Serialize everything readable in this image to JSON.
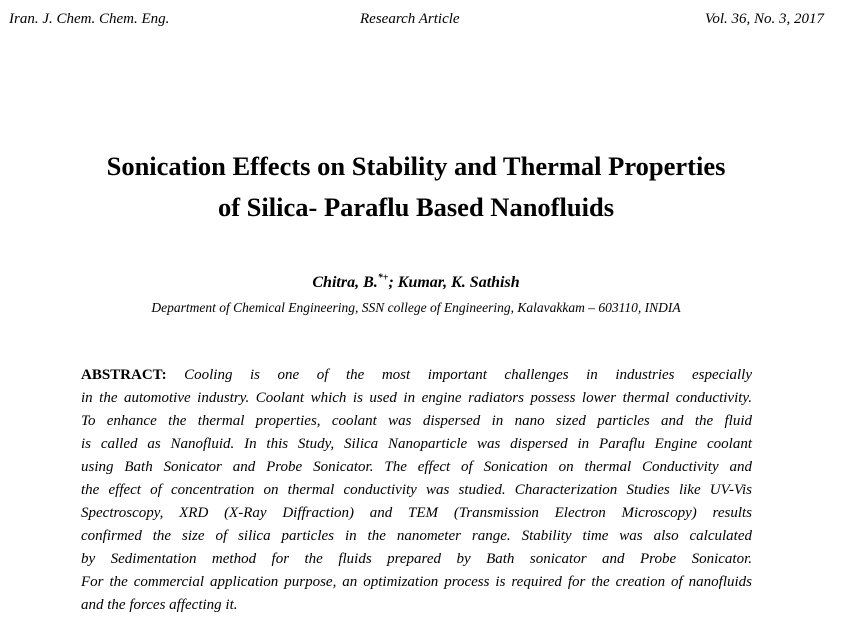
{
  "header": {
    "journal": "Iran. J. Chem. Chem. Eng.",
    "article_type": "Research Article",
    "volume": "Vol. 36, No. 3, 2017"
  },
  "title": {
    "line1": "Sonication Effects on Stability and Thermal Properties",
    "line2": "of Silica- Paraflu Based Nanofluids"
  },
  "authors": {
    "part1": "Chitra, B.",
    "marks": "*+",
    "part2": "; Kumar, K. Sathish"
  },
  "affiliation": "Department of Chemical Engineering, SSN college of Engineering, Kalavakkam – 603110, INDIA",
  "abstract": {
    "label": "ABSTRACT:",
    "lines": [
      "Cooling is one of the most important challenges in industries especially",
      "in the automotive industry. Coolant which is used in engine radiators possess lower thermal conductivity.",
      "To enhance the thermal properties, coolant was dispersed in nano sized particles and the fluid",
      "is called as Nanofluid. In this Study, Silica Nanoparticle was dispersed in Paraflu Engine coolant",
      "using Bath Sonicator and Probe Sonicator. The effect of Sonication on thermal Conductivity and",
      "the effect of concentration on thermal conductivity was studied. Characterization Studies like UV-Vis",
      "Spectroscopy, XRD (X-Ray Diffraction) and TEM (Transmission Electron Microscopy) results",
      "confirmed the size of silica particles in the nanometer range.  Stability time was also calculated",
      "by Sedimentation method for the fluids prepared by Bath sonicator and Probe Sonicator.",
      "For the commercial application purpose, an optimization process is required for the creation of nanofluids",
      "and the forces affecting it."
    ]
  }
}
